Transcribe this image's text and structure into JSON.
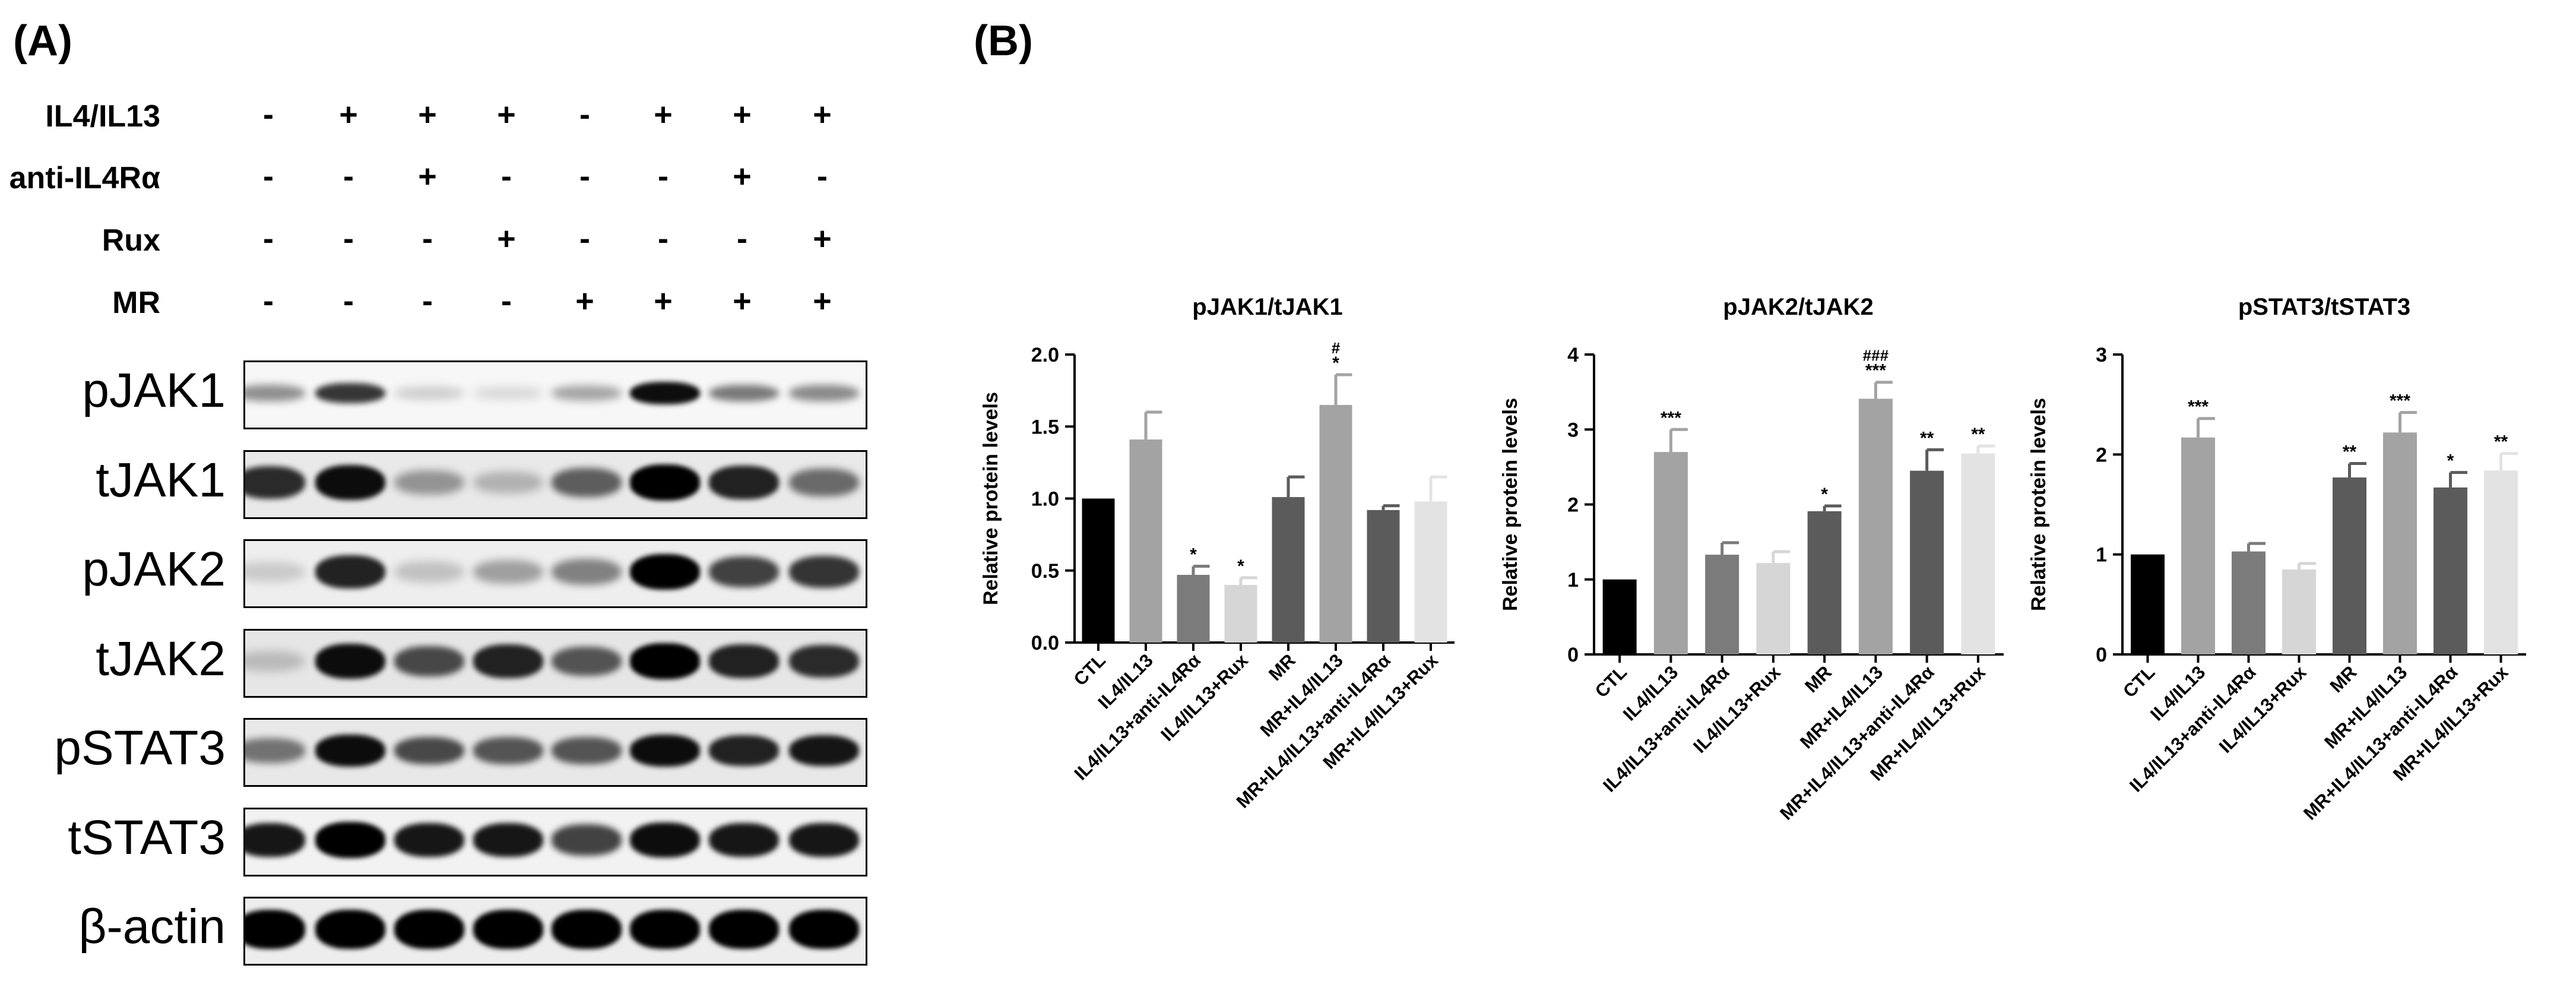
{
  "panel_a": {
    "label": "(A)",
    "treatments": [
      {
        "name": "IL4/IL13",
        "signs": [
          "-",
          "+",
          "+",
          "+",
          "-",
          "+",
          "+",
          "+"
        ]
      },
      {
        "name": "anti-IL4Rα",
        "signs": [
          "-",
          "-",
          "+",
          "-",
          "-",
          "-",
          "+",
          "-"
        ]
      },
      {
        "name": "Rux",
        "signs": [
          "-",
          "-",
          "-",
          "+",
          "-",
          "-",
          "-",
          "+"
        ]
      },
      {
        "name": "MR",
        "signs": [
          "-",
          "-",
          "-",
          "-",
          "+",
          "+",
          "+",
          "+"
        ]
      }
    ],
    "blots": [
      {
        "name": "pJAK1",
        "intensity": [
          0.35,
          0.75,
          0.08,
          0.02,
          0.25,
          0.95,
          0.45,
          0.38
        ],
        "height": 0.35,
        "background": "#f7f7f7"
      },
      {
        "name": "tJAK1",
        "intensity": [
          0.8,
          0.95,
          0.3,
          0.15,
          0.55,
          1.0,
          0.85,
          0.5
        ],
        "height": 0.55,
        "background": "#e9e9e9"
      },
      {
        "name": "pJAK2",
        "intensity": [
          0.05,
          0.85,
          0.1,
          0.25,
          0.4,
          1.0,
          0.7,
          0.75
        ],
        "height": 0.55,
        "background": "#eeeeee"
      },
      {
        "name": "tJAK2",
        "intensity": [
          0.1,
          0.95,
          0.65,
          0.85,
          0.6,
          1.0,
          0.85,
          0.8
        ],
        "height": 0.55,
        "background": "#e6e6e6"
      },
      {
        "name": "pSTAT3",
        "intensity": [
          0.45,
          0.95,
          0.65,
          0.6,
          0.6,
          0.95,
          0.85,
          0.9
        ],
        "height": 0.5,
        "background": "#e8e8e8"
      },
      {
        "name": "tSTAT3",
        "intensity": [
          0.9,
          1.0,
          0.9,
          0.9,
          0.7,
          0.95,
          0.9,
          0.9
        ],
        "height": 0.55,
        "background": "#f2f2f2"
      },
      {
        "name": "β-actin",
        "intensity": [
          1.0,
          1.0,
          1.0,
          1.0,
          1.0,
          1.0,
          1.0,
          1.0
        ],
        "height": 0.6,
        "background": "#ededed"
      }
    ]
  },
  "panel_b": {
    "label": "(B)"
  },
  "chart_data": [
    {
      "type": "bar",
      "title": "pJAK1/tJAK1",
      "ylabel": "Relative protein levels",
      "xlabel": "",
      "ylim": [
        0,
        2.0
      ],
      "yticks": [
        "0.0",
        "0.5",
        "1.0",
        "1.5",
        "2.0"
      ],
      "categories": [
        "CTL",
        "IL4/IL13",
        "IL4/IL13+anti-IL4Rα",
        "IL4/IL13+Rux",
        "MR",
        "MR+IL4/IL13",
        "MR+IL4/IL13+anti-IL4Rα",
        "MR+IL4/IL13+Rux"
      ],
      "values": [
        1.0,
        1.41,
        0.47,
        0.4,
        1.01,
        1.65,
        0.92,
        0.98
      ],
      "errors": [
        0.0,
        0.19,
        0.06,
        0.05,
        0.14,
        0.21,
        0.03,
        0.17
      ],
      "colors": [
        "#000000",
        "#a3a3a3",
        "#7b7b7b",
        "#d6d6d6",
        "#5b5b5b",
        "#a3a3a3",
        "#5b5b5b",
        "#e3e3e3"
      ],
      "significance": [
        "",
        "",
        "*",
        "*",
        "",
        "*",
        "",
        ""
      ],
      "hash_marks": [
        "",
        "",
        "",
        "",
        "",
        "#",
        "",
        ""
      ]
    },
    {
      "type": "bar",
      "title": "pJAK2/tJAK2",
      "ylabel": "Relative protein levels",
      "xlabel": "",
      "ylim": [
        0,
        4
      ],
      "yticks": [
        "0",
        "1",
        "2",
        "3",
        "4"
      ],
      "categories": [
        "CTL",
        "IL4/IL13",
        "IL4/IL13+anti-IL4Rα",
        "IL4/IL13+Rux",
        "MR",
        "MR+IL4/IL13",
        "MR+IL4/IL13+anti-IL4Rα",
        "MR+IL4/IL13+Rux"
      ],
      "values": [
        1.0,
        2.7,
        1.33,
        1.22,
        1.91,
        3.41,
        2.45,
        2.68
      ],
      "errors": [
        0.0,
        0.3,
        0.16,
        0.15,
        0.07,
        0.22,
        0.28,
        0.1
      ],
      "colors": [
        "#000000",
        "#a3a3a3",
        "#7b7b7b",
        "#d6d6d6",
        "#5b5b5b",
        "#a3a3a3",
        "#5b5b5b",
        "#e3e3e3"
      ],
      "significance": [
        "",
        "***",
        "",
        "",
        "*",
        "***",
        "**",
        "**"
      ],
      "hash_marks": [
        "",
        "",
        "",
        "",
        "",
        "###",
        "",
        ""
      ]
    },
    {
      "type": "bar",
      "title": "pSTAT3/tSTAT3",
      "ylabel": "Relative protein levels",
      "xlabel": "",
      "ylim": [
        0,
        3
      ],
      "yticks": [
        "0",
        "1",
        "2",
        "3"
      ],
      "categories": [
        "CTL",
        "IL4/IL13",
        "IL4/IL13+anti-IL4Rα",
        "IL4/IL13+Rux",
        "MR",
        "MR+IL4/IL13",
        "MR+IL4/IL13+anti-IL4Rα",
        "MR+IL4/IL13+Rux"
      ],
      "values": [
        1.0,
        2.17,
        1.03,
        0.85,
        1.77,
        2.22,
        1.67,
        1.84
      ],
      "errors": [
        0.0,
        0.19,
        0.08,
        0.06,
        0.14,
        0.2,
        0.15,
        0.17
      ],
      "colors": [
        "#000000",
        "#a3a3a3",
        "#7b7b7b",
        "#d6d6d6",
        "#5b5b5b",
        "#a3a3a3",
        "#5b5b5b",
        "#e3e3e3"
      ],
      "significance": [
        "",
        "***",
        "",
        "",
        "**",
        "***",
        "*",
        "**"
      ],
      "hash_marks": [
        "",
        "",
        "",
        "",
        "",
        "",
        "",
        ""
      ]
    }
  ]
}
